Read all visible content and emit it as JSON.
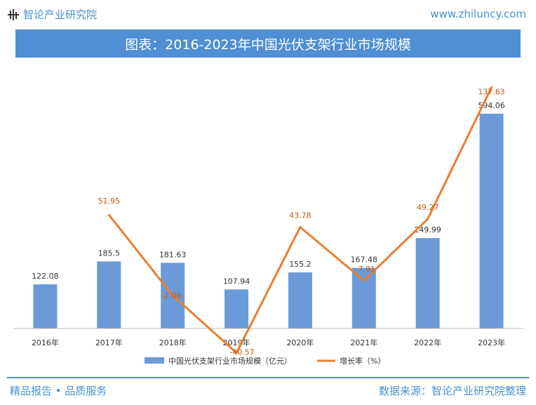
{
  "header": {
    "brand": "智论产业研究院",
    "logo_icon": "bar-chart-logo-icon",
    "url": "www.zhiluncy.com"
  },
  "title": "图表：2016-2023年中国光伏支架行业市场规模",
  "chart_data": {
    "type": "bar+line",
    "categories": [
      "2016年",
      "2017年",
      "2018年",
      "2019年",
      "2020年",
      "2021年",
      "2022年",
      "2023年"
    ],
    "series": [
      {
        "name": "中国光伏支架行业市场规模（亿元）",
        "type": "bar",
        "axis": "left",
        "color": "#6a9bd8",
        "values": [
          122.08,
          185.5,
          181.63,
          107.94,
          155.2,
          167.48,
          249.99,
          594.06
        ],
        "labels": [
          "122.08",
          "185.5",
          "181.63",
          "107.94",
          "155.2",
          "167.48",
          "249.99",
          "594.06"
        ]
      },
      {
        "name": "增长率（%）",
        "type": "line",
        "axis": "right",
        "color": "#ed7d31",
        "values": [
          null,
          51.95,
          -2.09,
          -40.57,
          43.78,
          7.91,
          49.27,
          137.63
        ],
        "labels": [
          "",
          "51.95",
          "-2.09",
          "-40.57",
          "43.78",
          "7.91",
          "49.27",
          "137.63"
        ]
      }
    ],
    "ylim_left": [
      0,
      660
    ],
    "ylim_right": [
      -60,
      150
    ],
    "grid": false,
    "legend": "bottom"
  },
  "footer": {
    "left": "精品报告 • 品质服务",
    "right": "数据来源：智论产业研究院整理"
  }
}
